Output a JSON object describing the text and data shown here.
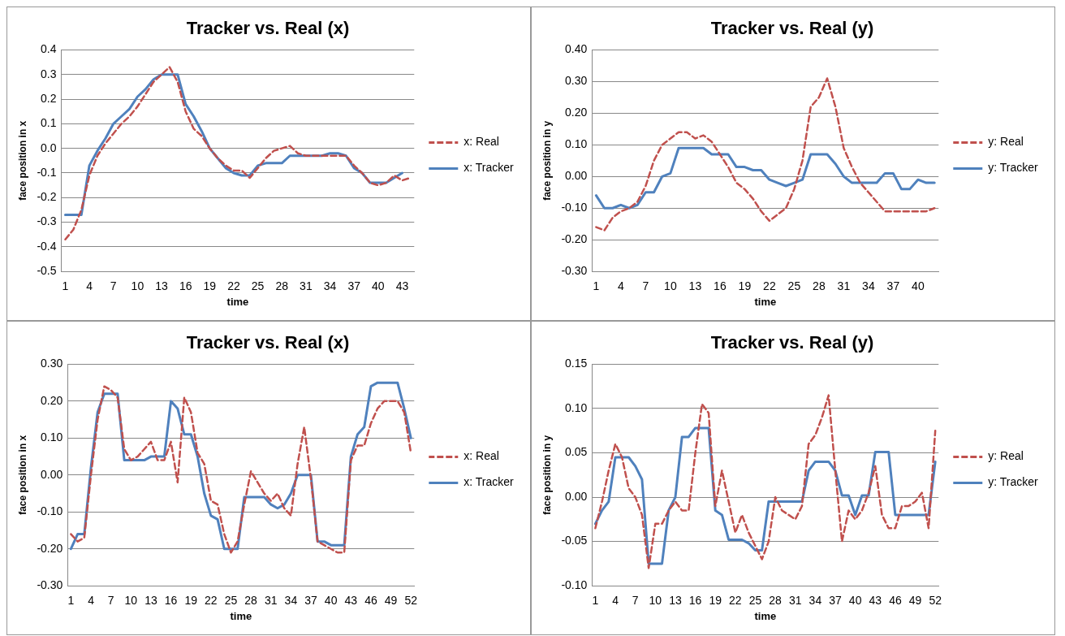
{
  "chart_data": [
    {
      "type": "line",
      "title": "Tracker vs. Real (x)",
      "xlabel": "time",
      "ylabel": "face position in x",
      "categories": [
        "1",
        null,
        null,
        "4",
        null,
        null,
        "7",
        null,
        null,
        "10",
        null,
        null,
        "13",
        null,
        null,
        "16",
        null,
        null,
        "19",
        null,
        null,
        "22",
        null,
        null,
        "25",
        null,
        null,
        "28",
        null,
        null,
        "31",
        null,
        null,
        "34",
        null,
        null,
        "37",
        null,
        null,
        "40",
        null,
        null,
        "43",
        null
      ],
      "ylim": [
        -0.5,
        0.4
      ],
      "yticks": [
        {
          "value": -0.5,
          "label": "-0.5"
        },
        {
          "value": -0.4,
          "label": "-0.4"
        },
        {
          "value": -0.3,
          "label": "-0.3"
        },
        {
          "value": -0.2,
          "label": "-0.2"
        },
        {
          "value": -0.1,
          "label": "-0.1"
        },
        {
          "value": 0,
          "label": "0.0"
        },
        {
          "value": 0.1,
          "label": "0.1"
        },
        {
          "value": 0.2,
          "label": "0.2"
        },
        {
          "value": 0.3,
          "label": "0.3"
        },
        {
          "value": 0.4,
          "label": "0.4"
        }
      ],
      "grid": "y",
      "legend": "right",
      "marker": "none",
      "series": [
        {
          "name": "x: Real",
          "color": "#c0504d",
          "line_style": "dashed",
          "values": [
            -0.37,
            -0.33,
            -0.25,
            -0.11,
            -0.03,
            0.02,
            0.06,
            0.1,
            0.13,
            0.17,
            0.22,
            0.27,
            0.3,
            0.33,
            0.27,
            0.15,
            0.08,
            0.05,
            0.0,
            -0.04,
            -0.07,
            -0.09,
            -0.09,
            -0.12,
            -0.08,
            -0.04,
            -0.01,
            0.0,
            0.01,
            -0.02,
            -0.03,
            -0.03,
            -0.03,
            -0.03,
            -0.03,
            -0.03,
            -0.07,
            -0.1,
            -0.14,
            -0.15,
            -0.14,
            -0.11,
            -0.13,
            -0.12
          ]
        },
        {
          "name": "x: Tracker",
          "color": "#4f81bd",
          "line_style": "solid",
          "values": [
            -0.27,
            -0.27,
            -0.27,
            -0.07,
            -0.01,
            0.04,
            0.1,
            0.13,
            0.16,
            0.21,
            0.24,
            0.28,
            0.3,
            0.3,
            0.3,
            0.18,
            0.13,
            0.07,
            0.0,
            -0.04,
            -0.08,
            -0.1,
            -0.11,
            -0.11,
            -0.07,
            -0.06,
            -0.06,
            -0.06,
            -0.03,
            -0.03,
            -0.03,
            -0.03,
            -0.03,
            -0.02,
            -0.02,
            -0.03,
            -0.08,
            -0.1,
            -0.14,
            -0.14,
            -0.14,
            -0.12,
            -0.1,
            null
          ]
        }
      ]
    },
    {
      "type": "line",
      "title": "Tracker vs. Real (y)",
      "xlabel": "time",
      "ylabel": "face position in y",
      "categories": [
        "1",
        null,
        null,
        "4",
        null,
        null,
        "7",
        null,
        null,
        "10",
        null,
        null,
        "13",
        null,
        null,
        "16",
        null,
        null,
        "19",
        null,
        null,
        "22",
        null,
        null,
        "25",
        null,
        null,
        "28",
        null,
        null,
        "31",
        null,
        null,
        "34",
        null,
        null,
        "37",
        null,
        null,
        "40",
        null,
        null
      ],
      "ylim": [
        -0.3,
        0.4
      ],
      "yticks": [
        {
          "value": -0.3,
          "label": "-0.30"
        },
        {
          "value": -0.2,
          "label": "-0.20"
        },
        {
          "value": -0.1,
          "label": "-0.10"
        },
        {
          "value": 0,
          "label": "0.00"
        },
        {
          "value": 0.1,
          "label": "0.10"
        },
        {
          "value": 0.2,
          "label": "0.20"
        },
        {
          "value": 0.3,
          "label": "0.30"
        },
        {
          "value": 0.4,
          "label": "0.40"
        }
      ],
      "grid": "y",
      "legend": "right",
      "marker": "none",
      "series": [
        {
          "name": "y: Real",
          "color": "#c0504d",
          "line_style": "dashed",
          "values": [
            -0.16,
            -0.17,
            -0.13,
            -0.11,
            -0.1,
            -0.08,
            -0.03,
            0.05,
            0.1,
            0.12,
            0.14,
            0.14,
            0.12,
            0.13,
            0.11,
            0.07,
            0.03,
            -0.02,
            -0.04,
            -0.07,
            -0.11,
            -0.14,
            -0.12,
            -0.1,
            -0.04,
            0.05,
            0.22,
            0.25,
            0.31,
            0.22,
            0.09,
            0.03,
            -0.02,
            -0.05,
            -0.08,
            -0.11,
            -0.11,
            -0.11,
            -0.11,
            -0.11,
            -0.11,
            -0.1
          ]
        },
        {
          "name": "y: Tracker",
          "color": "#4f81bd",
          "line_style": "solid",
          "values": [
            -0.06,
            -0.1,
            -0.1,
            -0.09,
            -0.1,
            -0.09,
            -0.05,
            -0.05,
            0.0,
            0.01,
            0.09,
            0.09,
            0.09,
            0.09,
            0.07,
            0.07,
            0.07,
            0.03,
            0.03,
            0.02,
            0.02,
            -0.01,
            -0.02,
            -0.03,
            -0.02,
            -0.01,
            0.07,
            0.07,
            0.07,
            0.04,
            0.0,
            -0.02,
            -0.02,
            -0.02,
            -0.02,
            0.01,
            0.01,
            -0.04,
            -0.04,
            -0.01,
            -0.02,
            -0.02
          ]
        }
      ]
    },
    {
      "type": "line",
      "title": "Tracker vs. Real (x)",
      "xlabel": "time",
      "ylabel": "face position in x",
      "categories": [
        "1",
        null,
        null,
        "4",
        null,
        null,
        "7",
        null,
        null,
        "10",
        null,
        null,
        "13",
        null,
        null,
        "16",
        null,
        null,
        "19",
        null,
        null,
        "22",
        null,
        null,
        "25",
        null,
        null,
        "28",
        null,
        null,
        "31",
        null,
        null,
        "34",
        null,
        null,
        "37",
        null,
        null,
        "40",
        null,
        null,
        "43",
        null,
        null,
        "46",
        null,
        null,
        "49",
        null,
        null,
        "52"
      ],
      "ylim": [
        -0.3,
        0.3
      ],
      "yticks": [
        {
          "value": -0.3,
          "label": "-0.30"
        },
        {
          "value": -0.2,
          "label": "-0.20"
        },
        {
          "value": -0.1,
          "label": "-0.10"
        },
        {
          "value": 0,
          "label": "0.00"
        },
        {
          "value": 0.1,
          "label": "0.10"
        },
        {
          "value": 0.2,
          "label": "0.20"
        },
        {
          "value": 0.3,
          "label": "0.30"
        }
      ],
      "grid": "y",
      "legend": "right",
      "marker": "none",
      "series": [
        {
          "name": "x: Real",
          "color": "#c0504d",
          "line_style": "dashed",
          "values": [
            -0.16,
            -0.18,
            -0.17,
            0.0,
            0.15,
            0.24,
            0.23,
            0.21,
            0.07,
            0.04,
            0.05,
            0.07,
            0.09,
            0.04,
            0.04,
            0.09,
            -0.02,
            0.21,
            0.17,
            0.06,
            0.03,
            -0.07,
            -0.08,
            -0.16,
            -0.21,
            -0.18,
            -0.08,
            0.01,
            -0.02,
            -0.05,
            -0.07,
            -0.05,
            -0.09,
            -0.11,
            0.03,
            0.13,
            -0.01,
            -0.18,
            -0.19,
            -0.2,
            -0.21,
            -0.21,
            0.04,
            0.08,
            0.08,
            0.14,
            0.18,
            0.2,
            0.2,
            0.2,
            0.17,
            0.06
          ]
        },
        {
          "name": "x: Tracker",
          "color": "#4f81bd",
          "line_style": "solid",
          "values": [
            -0.2,
            -0.16,
            -0.16,
            0.02,
            0.17,
            0.22,
            0.22,
            0.22,
            0.04,
            0.04,
            0.04,
            0.04,
            0.05,
            0.05,
            0.05,
            0.2,
            0.18,
            0.11,
            0.11,
            0.05,
            -0.05,
            -0.11,
            -0.12,
            -0.2,
            -0.2,
            -0.2,
            -0.06,
            -0.06,
            -0.06,
            -0.06,
            -0.08,
            -0.09,
            -0.08,
            -0.05,
            0.0,
            0.0,
            0.0,
            -0.18,
            -0.18,
            -0.19,
            -0.19,
            -0.19,
            0.05,
            0.11,
            0.13,
            0.24,
            0.25,
            0.25,
            0.25,
            0.25,
            0.18,
            0.1
          ]
        }
      ]
    },
    {
      "type": "line",
      "title": "Tracker vs. Real (y)",
      "xlabel": "time",
      "ylabel": "face position in y",
      "categories": [
        "1",
        null,
        null,
        "4",
        null,
        null,
        "7",
        null,
        null,
        "10",
        null,
        null,
        "13",
        null,
        null,
        "16",
        null,
        null,
        "19",
        null,
        null,
        "22",
        null,
        null,
        "25",
        null,
        null,
        "28",
        null,
        null,
        "31",
        null,
        null,
        "34",
        null,
        null,
        "37",
        null,
        null,
        "40",
        null,
        null,
        "43",
        null,
        null,
        "46",
        null,
        null,
        "49",
        null,
        null,
        "52"
      ],
      "ylim": [
        -0.1,
        0.15
      ],
      "yticks": [
        {
          "value": -0.1,
          "label": "-0.10"
        },
        {
          "value": -0.05,
          "label": "-0.05"
        },
        {
          "value": 0,
          "label": "0.00"
        },
        {
          "value": 0.05,
          "label": "0.05"
        },
        {
          "value": 0.1,
          "label": "0.10"
        },
        {
          "value": 0.15,
          "label": "0.15"
        }
      ],
      "grid": "y",
      "legend": "right",
      "marker": "none",
      "series": [
        {
          "name": "y: Real",
          "color": "#c0504d",
          "line_style": "dashed",
          "values": [
            -0.035,
            -0.005,
            0.03,
            0.06,
            0.045,
            0.01,
            0.0,
            -0.02,
            -0.08,
            -0.03,
            -0.03,
            -0.015,
            -0.005,
            -0.015,
            -0.015,
            0.05,
            0.105,
            0.095,
            -0.01,
            0.03,
            -0.005,
            -0.04,
            -0.02,
            -0.04,
            -0.055,
            -0.07,
            -0.05,
            0.0,
            -0.015,
            -0.02,
            -0.025,
            -0.01,
            0.06,
            0.07,
            0.09,
            0.115,
            0.03,
            -0.05,
            -0.015,
            -0.025,
            -0.015,
            0.005,
            0.035,
            -0.02,
            -0.035,
            -0.035,
            -0.01,
            -0.01,
            -0.005,
            0.005,
            -0.035,
            0.075
          ]
        },
        {
          "name": "y: Tracker",
          "color": "#4f81bd",
          "line_style": "solid",
          "values": [
            -0.03,
            -0.015,
            -0.005,
            0.045,
            0.045,
            0.045,
            0.035,
            0.02,
            -0.075,
            -0.075,
            -0.075,
            -0.015,
            0.0,
            0.068,
            0.068,
            0.078,
            0.078,
            0.078,
            -0.015,
            -0.02,
            -0.048,
            -0.048,
            -0.048,
            -0.052,
            -0.06,
            -0.06,
            -0.005,
            -0.005,
            -0.005,
            -0.005,
            -0.005,
            -0.005,
            0.03,
            0.04,
            0.04,
            0.04,
            0.03,
            0.002,
            0.002,
            -0.02,
            0.002,
            0.002,
            0.051,
            0.051,
            0.051,
            -0.02,
            -0.02,
            -0.02,
            -0.02,
            -0.02,
            -0.02,
            0.04
          ]
        }
      ]
    }
  ]
}
